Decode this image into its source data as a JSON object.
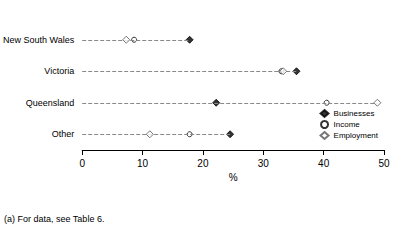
{
  "chart_data": {
    "type": "scatter",
    "orientation": "horizontal",
    "categories": [
      "New South Wales",
      "Victoria",
      "Queensland",
      "Other"
    ],
    "series": [
      {
        "name": "Businesses",
        "color": "#000000",
        "marker": "diamond",
        "values": [
          17.8,
          35.5,
          22.2,
          24.5
        ]
      },
      {
        "name": "Income",
        "color": "#000000",
        "marker": "circle_open",
        "values": [
          8.6,
          33.0,
          40.5,
          17.8
        ]
      },
      {
        "name": "Employment",
        "color": "#555555",
        "marker": "diamond_open",
        "values": [
          7.3,
          33.3,
          48.9,
          11.2
        ]
      }
    ],
    "xlabel": "%",
    "xlim": [
      0,
      50
    ],
    "xticks": [
      0,
      10,
      20,
      30,
      40,
      50
    ],
    "legend": "lower right",
    "grid": false,
    "annotation": "(a) For data, see Table 6."
  }
}
